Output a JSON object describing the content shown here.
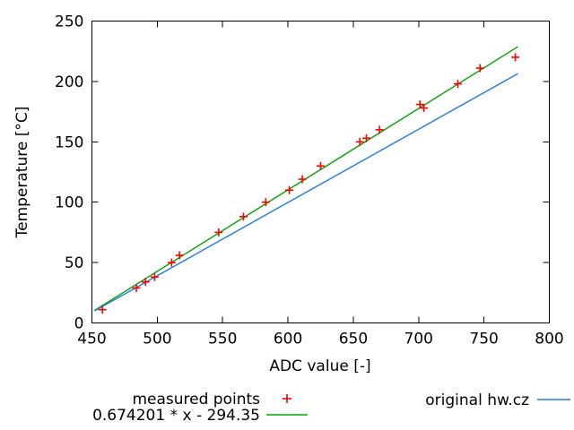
{
  "figure_title": "",
  "colors": {
    "background": "#ffffff",
    "axis": "#000000",
    "text": "#000000"
  },
  "chart_data": {
    "type": "scatter",
    "title": "",
    "xlabel": "ADC value [-]",
    "ylabel": "Temperature [°C]",
    "xlim": [
      450,
      800
    ],
    "ylim": [
      0,
      250
    ],
    "xticks": [
      450,
      500,
      550,
      600,
      650,
      700,
      750,
      800
    ],
    "yticks": [
      0,
      50,
      100,
      150,
      200,
      250
    ],
    "grid": false,
    "legend_position": "below-plot",
    "series": [
      {
        "name": "measured points",
        "type": "points",
        "marker": "plus",
        "color": "#ff0000",
        "x": [
          458,
          484,
          491,
          498,
          511,
          517,
          547,
          566,
          583,
          601,
          611,
          625,
          655,
          660,
          670,
          701,
          704,
          730,
          747,
          774
        ],
        "y": [
          11,
          29,
          34,
          38,
          50,
          56,
          75,
          88,
          100,
          110,
          119,
          130,
          150,
          153,
          160,
          181,
          178,
          198,
          211,
          220
        ]
      },
      {
        "name": "0.674201 * x - 294.35",
        "type": "line",
        "color": "#00a400",
        "x": [
          452,
          776
        ],
        "y": [
          10.4,
          228.8
        ]
      },
      {
        "name": "original hw.cz",
        "type": "line",
        "color": "#1c7ce8",
        "x": [
          452,
          776
        ],
        "y": [
          10.0,
          206.5
        ]
      }
    ],
    "fit_equation": {
      "slope": 0.674201,
      "intercept": -294.35
    }
  }
}
